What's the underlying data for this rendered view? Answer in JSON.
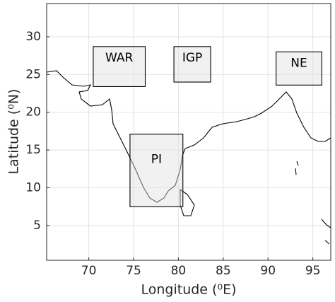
{
  "chart_data": {
    "type": "map",
    "xlabel": "Longitude (⁰E)",
    "ylabel": "Latitude (⁰N)",
    "xlim": [
      65.3,
      97
    ],
    "ylim": [
      0.4,
      34.4
    ],
    "xticks": [
      70,
      75,
      80,
      85,
      90,
      95
    ],
    "yticks": [
      5,
      10,
      15,
      20,
      25,
      30
    ],
    "grid": true,
    "regions": [
      {
        "name": "WAR",
        "lon": [
          70.5,
          76.3
        ],
        "lat": [
          23.4,
          28.7
        ]
      },
      {
        "name": "IGP",
        "lon": [
          79.5,
          83.6
        ],
        "lat": [
          24.0,
          28.7
        ]
      },
      {
        "name": "NE",
        "lon": [
          90.9,
          96.0
        ],
        "lat": [
          23.6,
          28.0
        ]
      },
      {
        "name": "PI",
        "lon": [
          74.6,
          80.5
        ],
        "lat": [
          7.5,
          17.1
        ]
      }
    ]
  }
}
